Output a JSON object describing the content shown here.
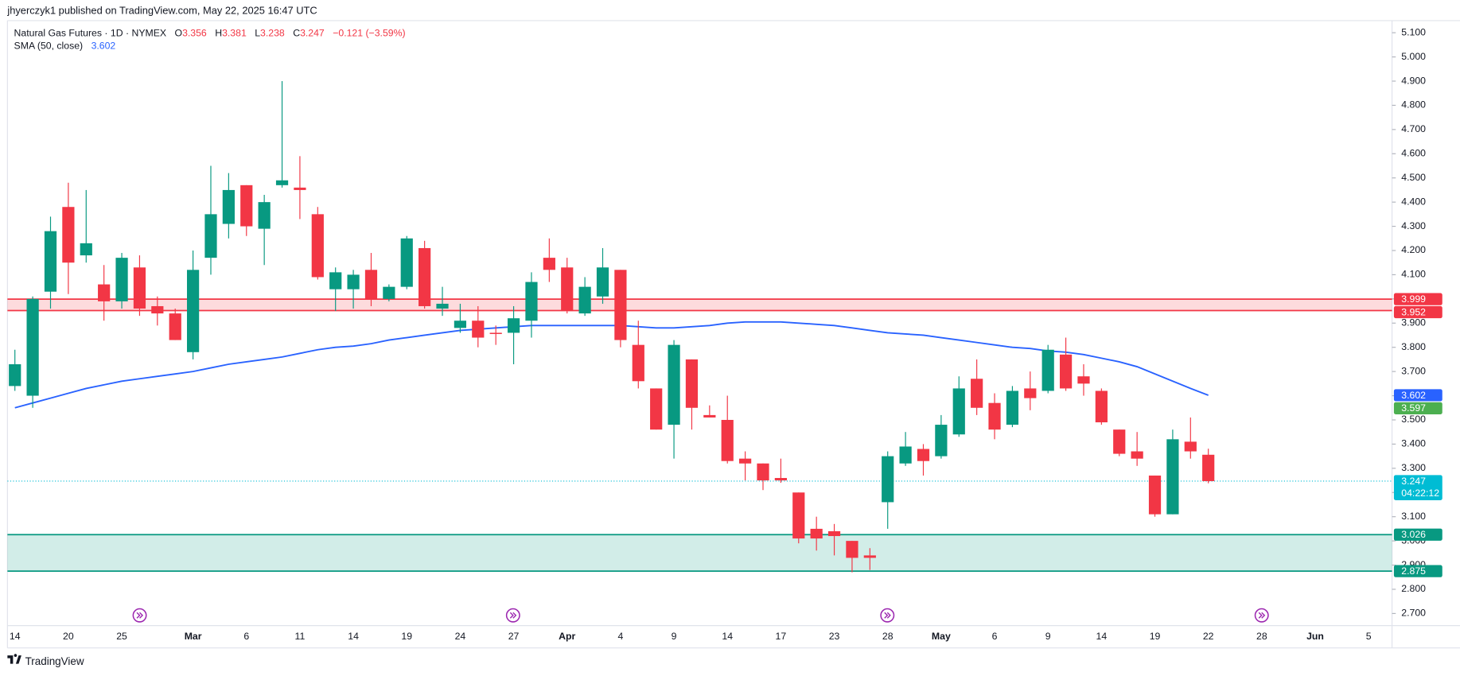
{
  "attribution": "jhyerczyk1 published on TradingView.com, May 22, 2025 16:47 UTC",
  "chart_data": {
    "type": "candlestick",
    "title": "Natural Gas Futures · 1D · NYMEX",
    "legend_keys": [
      "O",
      "H",
      "L",
      "C"
    ],
    "change": "−0.121 (−3.59%)",
    "categories": [
      "14",
      null,
      null,
      "20",
      null,
      null,
      "25",
      null,
      null,
      null,
      "Mar",
      null,
      null,
      "6",
      null,
      null,
      "11",
      null,
      null,
      "14",
      null,
      null,
      "19",
      null,
      null,
      "24",
      null,
      null,
      "27",
      null,
      null,
      "Apr",
      null,
      null,
      "4",
      null,
      null,
      "9",
      null,
      null,
      "14",
      null,
      null,
      "17",
      null,
      null,
      "23",
      null,
      null,
      "28",
      null,
      null,
      "May",
      null,
      null,
      "6",
      null,
      null,
      "9",
      null,
      null,
      "14",
      null,
      null,
      "19",
      null,
      null,
      "22",
      null,
      null,
      "28",
      null,
      null,
      "Jun",
      null,
      null,
      "5",
      null
    ],
    "open": [
      3.64,
      3.6,
      4.03,
      4.38,
      4.18,
      4.06,
      3.99,
      4.13,
      3.97,
      3.94,
      3.78,
      4.17,
      4.31,
      4.47,
      4.29,
      4.47,
      4.46,
      4.35,
      4.04,
      4.04,
      4.12,
      4.0,
      4.05,
      4.21,
      3.96,
      3.88,
      3.91,
      3.86,
      3.86,
      3.91,
      4.17,
      4.13,
      3.94,
      4.01,
      4.12,
      3.81,
      3.63,
      3.48,
      3.75,
      3.52,
      3.5,
      3.34,
      3.32,
      3.26,
      3.2,
      3.05,
      3.04,
      3.0,
      2.94,
      3.16,
      3.32,
      3.38,
      3.35,
      3.44,
      3.67,
      3.57,
      3.48,
      3.63,
      3.62,
      3.77,
      3.68,
      3.62,
      3.46,
      3.37,
      3.27,
      3.11,
      3.41,
      3.356,
      null,
      null,
      null,
      null,
      null,
      null,
      null,
      null,
      null,
      null
    ],
    "high": [
      3.79,
      4.01,
      4.34,
      4.48,
      4.45,
      4.14,
      4.19,
      4.18,
      4.01,
      3.96,
      4.2,
      4.55,
      4.52,
      4.47,
      4.43,
      4.9,
      4.59,
      4.38,
      4.13,
      4.12,
      4.19,
      4.06,
      4.26,
      4.24,
      4.05,
      3.98,
      3.97,
      3.89,
      3.97,
      4.11,
      4.25,
      4.17,
      4.09,
      4.21,
      4.12,
      3.91,
      3.63,
      3.83,
      3.75,
      3.56,
      3.6,
      3.37,
      3.32,
      3.34,
      3.2,
      3.1,
      3.07,
      3.0,
      2.97,
      3.37,
      3.45,
      3.4,
      3.52,
      3.68,
      3.75,
      3.61,
      3.64,
      3.7,
      3.81,
      3.84,
      3.73,
      3.63,
      3.46,
      3.45,
      3.27,
      3.46,
      3.51,
      3.381,
      null,
      null,
      null,
      null,
      null,
      null,
      null,
      null,
      null,
      null
    ],
    "low": [
      3.62,
      3.55,
      3.96,
      4.02,
      4.15,
      3.91,
      3.96,
      3.93,
      3.89,
      3.83,
      3.75,
      4.1,
      4.25,
      4.26,
      4.14,
      4.46,
      4.33,
      4.08,
      3.95,
      3.96,
      3.97,
      3.99,
      4.04,
      3.96,
      3.93,
      3.86,
      3.8,
      3.81,
      3.73,
      3.84,
      4.07,
      3.94,
      3.93,
      3.98,
      3.8,
      3.63,
      3.46,
      3.34,
      3.46,
      3.51,
      3.32,
      3.25,
      3.21,
      3.24,
      2.99,
      2.96,
      2.94,
      2.87,
      2.88,
      3.05,
      3.31,
      3.27,
      3.34,
      3.43,
      3.52,
      3.42,
      3.47,
      3.54,
      3.61,
      3.62,
      3.6,
      3.48,
      3.35,
      3.31,
      3.1,
      3.11,
      3.34,
      3.238,
      null,
      null,
      null,
      null,
      null,
      null,
      null,
      null,
      null,
      null
    ],
    "close": [
      3.73,
      4.0,
      4.28,
      4.15,
      4.23,
      3.99,
      4.17,
      3.96,
      3.94,
      3.83,
      4.12,
      4.35,
      4.45,
      4.3,
      4.4,
      4.49,
      4.45,
      4.09,
      4.11,
      4.1,
      4.0,
      4.05,
      4.25,
      3.97,
      3.98,
      3.91,
      3.84,
      3.855,
      3.92,
      4.07,
      4.12,
      3.95,
      4.05,
      4.13,
      3.83,
      3.66,
      3.46,
      3.81,
      3.55,
      3.51,
      3.33,
      3.32,
      3.25,
      3.25,
      3.01,
      3.01,
      3.02,
      2.93,
      2.93,
      3.35,
      3.39,
      3.33,
      3.48,
      3.63,
      3.55,
      3.46,
      3.62,
      3.59,
      3.79,
      3.63,
      3.65,
      3.49,
      3.36,
      3.34,
      3.11,
      3.42,
      3.37,
      3.247,
      null,
      null,
      null,
      null,
      null,
      null,
      null,
      null,
      null,
      null
    ],
    "up_color": "#089981",
    "down_color": "#f23645",
    "sma": {
      "name": "SMA (50, close)",
      "color": "#2962ff",
      "values": [
        3.55,
        3.57,
        3.59,
        3.61,
        3.63,
        3.645,
        3.66,
        3.67,
        3.68,
        3.69,
        3.7,
        3.715,
        3.73,
        3.74,
        3.75,
        3.76,
        3.775,
        3.79,
        3.8,
        3.805,
        3.815,
        3.83,
        3.84,
        3.85,
        3.86,
        3.87,
        3.875,
        3.88,
        3.885,
        3.89,
        3.89,
        3.89,
        3.89,
        3.89,
        3.89,
        3.885,
        3.88,
        3.88,
        3.885,
        3.89,
        3.9,
        3.905,
        3.905,
        3.905,
        3.9,
        3.895,
        3.89,
        3.88,
        3.87,
        3.86,
        3.855,
        3.85,
        3.84,
        3.83,
        3.82,
        3.81,
        3.8,
        3.795,
        3.785,
        3.78,
        3.77,
        3.755,
        3.74,
        3.72,
        3.69,
        3.66,
        3.63,
        3.602,
        null,
        null,
        null,
        null,
        null,
        null,
        null,
        null,
        null,
        null
      ]
    },
    "zones": [
      {
        "low": 3.952,
        "high": 3.999,
        "color": "#f23645"
      },
      {
        "low": 2.875,
        "high": 3.026,
        "color": "#089981"
      }
    ],
    "price_line_color": "#00bcd4",
    "countdown": "04:22:12",
    "other_price": {
      "value": 3.597,
      "color": "#4caf50"
    },
    "ylim": [
      2.65,
      5.15
    ],
    "yticks": [
      {
        "value": 2.7,
        "label": "2.700"
      },
      {
        "value": 2.8,
        "label": "2.800"
      },
      {
        "value": 2.9,
        "label": "2.900"
      },
      {
        "value": 3.0,
        "label": "3.000"
      },
      {
        "value": 3.1,
        "label": "3.100"
      },
      {
        "value": 3.2,
        "label": "3.200"
      },
      {
        "value": 3.3,
        "label": "3.300"
      },
      {
        "value": 3.4,
        "label": "3.400"
      },
      {
        "value": 3.5,
        "label": "3.500"
      },
      {
        "value": 3.6,
        "label": "3.600"
      },
      {
        "value": 3.7,
        "label": "3.700"
      },
      {
        "value": 3.8,
        "label": "3.800"
      },
      {
        "value": 3.9,
        "label": "3.900"
      },
      {
        "value": 4.0,
        "label": "4.000"
      },
      {
        "value": 4.1,
        "label": "4.100"
      },
      {
        "value": 4.2,
        "label": "4.200"
      },
      {
        "value": 4.3,
        "label": "4.300"
      },
      {
        "value": 4.4,
        "label": "4.400"
      },
      {
        "value": 4.5,
        "label": "4.500"
      },
      {
        "value": 4.6,
        "label": "4.600"
      },
      {
        "value": 4.7,
        "label": "4.700"
      },
      {
        "value": 4.8,
        "label": "4.800"
      },
      {
        "value": 4.9,
        "label": "4.900"
      },
      {
        "value": 5.0,
        "label": "5.000"
      },
      {
        "value": 5.1,
        "label": "5.100"
      }
    ],
    "grid": false
  },
  "footer": "TradingView"
}
